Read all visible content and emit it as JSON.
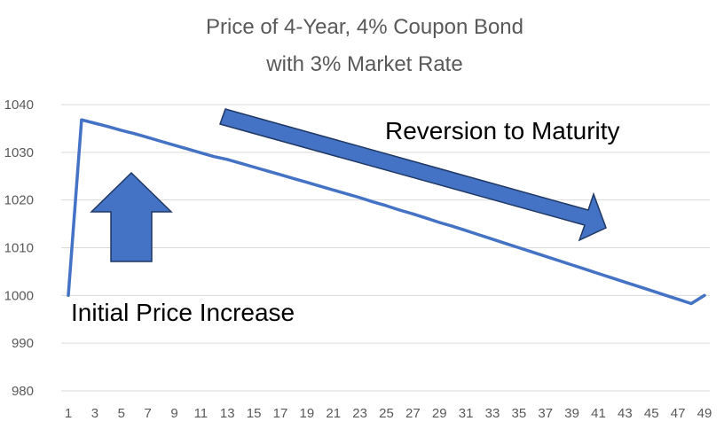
{
  "chart_data": {
    "type": "line",
    "title_line1": "Price of 4-Year, 4% Coupon Bond",
    "title_line2": "with 3% Market Rate",
    "xlabel": "",
    "ylabel": "",
    "ylim": [
      980,
      1040
    ],
    "y_ticks": [
      980,
      990,
      1000,
      1010,
      1020,
      1030,
      1040
    ],
    "x_ticks": [
      1,
      3,
      5,
      7,
      9,
      11,
      13,
      15,
      17,
      19,
      21,
      23,
      25,
      27,
      29,
      31,
      33,
      35,
      37,
      39,
      41,
      43,
      45,
      47,
      49
    ],
    "grid": true,
    "legend": "none",
    "series": [
      {
        "x": [
          1,
          2,
          3,
          4,
          5,
          6,
          7,
          8,
          9,
          10,
          11,
          12,
          13,
          14,
          15,
          16,
          17,
          18,
          19,
          20,
          21,
          22,
          23,
          24,
          25,
          26,
          27,
          28,
          29,
          30,
          31,
          32,
          33,
          34,
          35,
          36,
          37,
          38,
          39,
          40,
          41,
          42,
          43,
          44,
          45,
          46,
          47,
          48,
          49
        ],
        "values": [
          1000.0,
          1036.8,
          1036.1,
          1035.4,
          1034.6,
          1033.9,
          1033.1,
          1032.3,
          1031.5,
          1030.7,
          1029.9,
          1029.1,
          1028.5,
          1027.7,
          1026.9,
          1026.1,
          1025.3,
          1024.5,
          1023.7,
          1022.9,
          1022.1,
          1021.3,
          1020.5,
          1019.6,
          1018.8,
          1017.9,
          1017.1,
          1016.2,
          1015.3,
          1014.5,
          1013.6,
          1012.7,
          1011.8,
          1010.9,
          1010.0,
          1009.1,
          1008.2,
          1007.3,
          1006.4,
          1005.5,
          1004.6,
          1003.7,
          1002.8,
          1001.9,
          1001.0,
          1000.1,
          999.2,
          998.3,
          1000.0
        ],
        "color": "#4472c4"
      }
    ],
    "annotations": [
      {
        "text": "Reversion to Maturity"
      },
      {
        "text": "Initial Price Increase"
      }
    ],
    "arrow_color": "#4472c4",
    "arrow_border": "#1f3864"
  }
}
